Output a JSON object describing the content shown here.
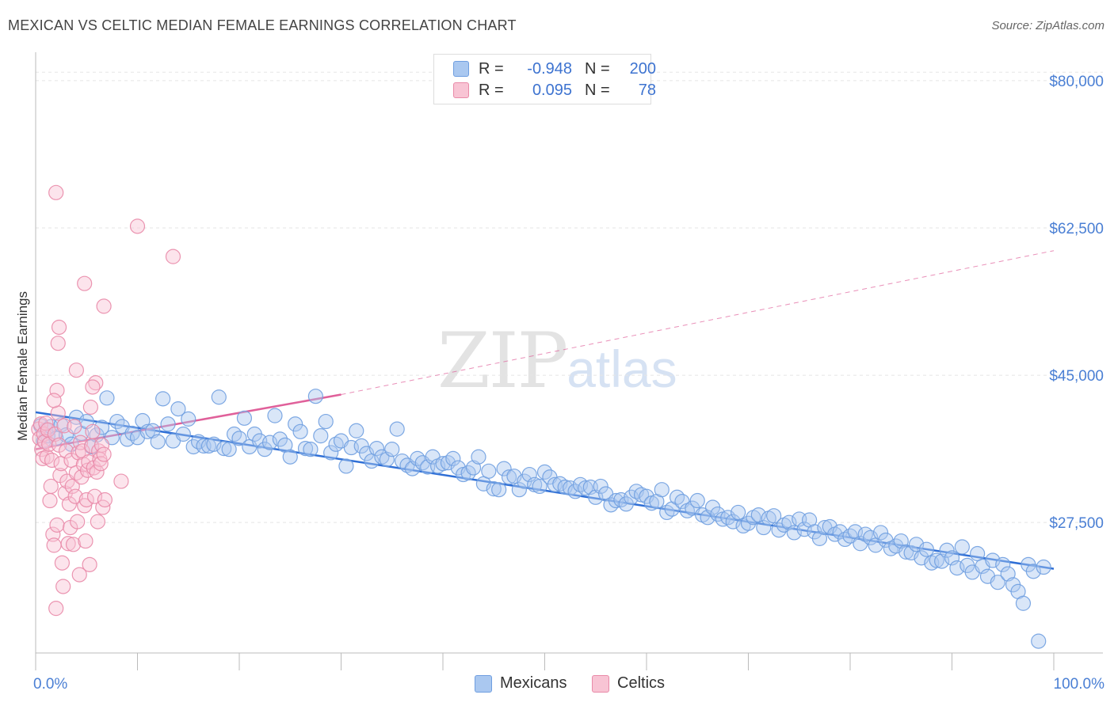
{
  "header": {
    "title": "MEXICAN VS CELTIC MEDIAN FEMALE EARNINGS CORRELATION CHART",
    "source": "Source: ZipAtlas.com"
  },
  "watermark": {
    "zip": "ZIP",
    "atlas": "atlas"
  },
  "legend": {
    "rows": [
      {
        "r_label": "R =",
        "r_value": "-0.948",
        "n_label": "N =",
        "n_value": "200",
        "color": "#aac8f0",
        "border": "#6f9ee0"
      },
      {
        "r_label": "R =",
        "r_value": "0.095",
        "n_label": "N =",
        "n_value": "78",
        "color": "#f8c4d4",
        "border": "#e98aa8"
      }
    ]
  },
  "bottom_legend": {
    "mexicans": "Mexicans",
    "celtics": "Celtics"
  },
  "colors": {
    "mexicans_fill": "#aac8f0",
    "mexicans_stroke": "#6f9ee0",
    "mexicans_line": "#2f6fd6",
    "celtics_fill": "#f8c4d4",
    "celtics_stroke": "#e98aa8",
    "celtics_line": "#e0609a",
    "grid": "#e5e5e5",
    "tick_text": "#4a7fd4"
  },
  "chart_data": {
    "type": "scatter",
    "title": "MEXICAN VS CELTIC MEDIAN FEMALE EARNINGS CORRELATION CHART",
    "xlabel": "",
    "ylabel": "Median Female Earnings",
    "xlim": [
      0,
      100
    ],
    "ylim": [
      12000,
      83000
    ],
    "x_tick_labels": [
      "0.0%",
      "100.0%"
    ],
    "y_ticks": [
      27500,
      45000,
      62500,
      80000
    ],
    "y_tick_labels": [
      "$27,500",
      "$45,000",
      "$62,500",
      "$80,000"
    ],
    "grid": "horizontal dashed",
    "legend_position": "top-center",
    "series": [
      {
        "name": "Mexicans",
        "R": -0.948,
        "N": 200,
        "trend": {
          "x": [
            0,
            100
          ],
          "y": [
            40600,
            22000
          ],
          "dashed_extension": false
        },
        "points": [
          [
            0.5,
            39.0
          ],
          [
            0.8,
            37.2
          ],
          [
            1.0,
            38.5
          ],
          [
            1.2,
            37.8
          ],
          [
            1.5,
            38.9
          ],
          [
            2.0,
            37.5
          ],
          [
            2.5,
            39.1
          ],
          [
            3.0,
            37.9
          ],
          [
            3.5,
            36.8
          ],
          [
            4.0,
            40.0
          ],
          [
            4.5,
            38.1
          ],
          [
            5.0,
            39.5
          ],
          [
            5.5,
            36.5
          ],
          [
            6.0,
            37.9
          ],
          [
            6.5,
            38.8
          ],
          [
            7.0,
            42.3
          ],
          [
            7.5,
            37.6
          ],
          [
            8.0,
            39.5
          ],
          [
            8.5,
            38.9
          ],
          [
            9.0,
            37.4
          ],
          [
            9.5,
            38.1
          ],
          [
            10.0,
            37.6
          ],
          [
            10.5,
            39.6
          ],
          [
            11.0,
            38.3
          ],
          [
            11.5,
            38.4
          ],
          [
            12.0,
            37.1
          ],
          [
            12.5,
            42.2
          ],
          [
            13.0,
            39.2
          ],
          [
            13.5,
            37.2
          ],
          [
            14.0,
            41.0
          ],
          [
            14.5,
            38.0
          ],
          [
            15.0,
            39.8
          ],
          [
            15.5,
            36.5
          ],
          [
            16.0,
            37.1
          ],
          [
            16.5,
            36.6
          ],
          [
            17.0,
            36.6
          ],
          [
            17.5,
            36.8
          ],
          [
            18.0,
            42.4
          ],
          [
            18.5,
            36.3
          ],
          [
            19.0,
            36.2
          ],
          [
            19.5,
            38.0
          ],
          [
            20.0,
            37.5
          ],
          [
            20.5,
            39.9
          ],
          [
            21.0,
            36.5
          ],
          [
            21.5,
            38.0
          ],
          [
            22.0,
            37.2
          ],
          [
            22.5,
            36.2
          ],
          [
            23.0,
            37.0
          ],
          [
            23.5,
            40.2
          ],
          [
            24.0,
            37.4
          ],
          [
            24.5,
            36.7
          ],
          [
            25.0,
            35.3
          ],
          [
            25.5,
            39.2
          ],
          [
            26.0,
            38.3
          ],
          [
            26.5,
            36.3
          ],
          [
            27.0,
            36.2
          ],
          [
            27.5,
            42.5
          ],
          [
            28.0,
            37.8
          ],
          [
            28.5,
            39.5
          ],
          [
            29.0,
            35.8
          ],
          [
            29.5,
            36.8
          ],
          [
            30.0,
            37.2
          ],
          [
            30.5,
            34.2
          ],
          [
            31.0,
            36.4
          ],
          [
            31.5,
            38.4
          ],
          [
            32.0,
            36.6
          ],
          [
            32.5,
            35.7
          ],
          [
            33.0,
            34.8
          ],
          [
            33.5,
            36.3
          ],
          [
            34.0,
            35.3
          ],
          [
            34.5,
            35.0
          ],
          [
            35.0,
            36.2
          ],
          [
            35.5,
            38.6
          ],
          [
            36.0,
            34.8
          ],
          [
            36.5,
            34.3
          ],
          [
            37.0,
            33.9
          ],
          [
            37.5,
            35.1
          ],
          [
            38.0,
            34.6
          ],
          [
            38.5,
            34.1
          ],
          [
            39.0,
            35.3
          ],
          [
            39.5,
            34.2
          ],
          [
            40.0,
            34.5
          ],
          [
            40.5,
            34.6
          ],
          [
            41.0,
            35.1
          ],
          [
            41.5,
            34.0
          ],
          [
            42.0,
            33.2
          ],
          [
            42.5,
            33.4
          ],
          [
            43.0,
            34.0
          ],
          [
            43.5,
            35.3
          ],
          [
            44.0,
            32.1
          ],
          [
            44.5,
            33.6
          ],
          [
            45.0,
            31.5
          ],
          [
            45.5,
            31.4
          ],
          [
            46.0,
            33.9
          ],
          [
            46.5,
            32.9
          ],
          [
            47.0,
            33.0
          ],
          [
            47.5,
            31.4
          ],
          [
            48.0,
            32.4
          ],
          [
            48.5,
            33.2
          ],
          [
            49.0,
            32.0
          ],
          [
            49.5,
            31.8
          ],
          [
            50.0,
            33.5
          ],
          [
            50.5,
            32.9
          ],
          [
            51.0,
            32.0
          ],
          [
            51.5,
            32.1
          ],
          [
            52.0,
            31.7
          ],
          [
            52.5,
            31.6
          ],
          [
            53.0,
            31.2
          ],
          [
            53.5,
            32.0
          ],
          [
            54.0,
            31.6
          ],
          [
            54.5,
            31.7
          ],
          [
            55.0,
            30.5
          ],
          [
            55.5,
            31.8
          ],
          [
            56.0,
            30.9
          ],
          [
            56.5,
            29.6
          ],
          [
            57.0,
            30.1
          ],
          [
            57.5,
            30.2
          ],
          [
            58.0,
            29.7
          ],
          [
            58.5,
            30.5
          ],
          [
            59.0,
            31.2
          ],
          [
            59.5,
            30.8
          ],
          [
            60.0,
            30.6
          ],
          [
            60.5,
            29.8
          ],
          [
            61.0,
            30.0
          ],
          [
            61.5,
            31.4
          ],
          [
            62.0,
            28.7
          ],
          [
            62.5,
            29.1
          ],
          [
            63.0,
            30.5
          ],
          [
            63.5,
            30.0
          ],
          [
            64.0,
            28.9
          ],
          [
            64.5,
            29.2
          ],
          [
            65.0,
            30.1
          ],
          [
            65.5,
            28.4
          ],
          [
            66.0,
            28.1
          ],
          [
            66.5,
            29.3
          ],
          [
            67.0,
            28.5
          ],
          [
            67.5,
            27.9
          ],
          [
            68.0,
            28.1
          ],
          [
            68.5,
            27.6
          ],
          [
            69.0,
            28.7
          ],
          [
            69.5,
            27.1
          ],
          [
            70.0,
            27.4
          ],
          [
            70.5,
            28.1
          ],
          [
            71.0,
            28.4
          ],
          [
            71.5,
            26.9
          ],
          [
            72.0,
            28.0
          ],
          [
            72.5,
            28.3
          ],
          [
            73.0,
            26.6
          ],
          [
            73.5,
            27.2
          ],
          [
            74.0,
            27.5
          ],
          [
            74.5,
            26.3
          ],
          [
            75.0,
            27.9
          ],
          [
            75.5,
            26.7
          ],
          [
            76.0,
            27.8
          ],
          [
            76.5,
            26.4
          ],
          [
            77.0,
            25.6
          ],
          [
            77.5,
            26.9
          ],
          [
            78.0,
            27.0
          ],
          [
            78.5,
            26.1
          ],
          [
            79.0,
            26.4
          ],
          [
            79.5,
            25.5
          ],
          [
            80.0,
            25.9
          ],
          [
            80.5,
            26.4
          ],
          [
            81.0,
            25.0
          ],
          [
            81.5,
            26.1
          ],
          [
            82.0,
            25.7
          ],
          [
            82.5,
            24.8
          ],
          [
            83.0,
            26.3
          ],
          [
            83.5,
            25.4
          ],
          [
            84.0,
            24.4
          ],
          [
            84.5,
            24.7
          ],
          [
            85.0,
            25.3
          ],
          [
            85.5,
            24.0
          ],
          [
            86.0,
            23.9
          ],
          [
            86.5,
            24.9
          ],
          [
            87.0,
            23.3
          ],
          [
            87.5,
            24.3
          ],
          [
            88.0,
            22.7
          ],
          [
            88.5,
            23.0
          ],
          [
            89.0,
            22.9
          ],
          [
            89.5,
            24.2
          ],
          [
            90.0,
            23.3
          ],
          [
            90.5,
            22.1
          ],
          [
            91.0,
            24.6
          ],
          [
            91.5,
            22.4
          ],
          [
            92.0,
            21.6
          ],
          [
            92.5,
            23.8
          ],
          [
            93.0,
            22.3
          ],
          [
            93.5,
            21.1
          ],
          [
            94.0,
            23.0
          ],
          [
            94.5,
            20.4
          ],
          [
            95.0,
            22.5
          ],
          [
            95.5,
            21.4
          ],
          [
            96.0,
            20.1
          ],
          [
            96.5,
            19.3
          ],
          [
            97.0,
            17.9
          ],
          [
            97.5,
            22.5
          ],
          [
            98.0,
            21.7
          ],
          [
            98.5,
            13.4
          ],
          [
            99.0,
            22.2
          ]
        ]
      },
      {
        "name": "Celtics",
        "R": 0.095,
        "N": 78,
        "trend": {
          "x": [
            0,
            30,
            100
          ],
          "y": [
            36200,
            42700,
            59800
          ],
          "dashed_extension": true
        },
        "points": [
          [
            0.3,
            38.6
          ],
          [
            0.4,
            37.5
          ],
          [
            0.5,
            39.2
          ],
          [
            0.6,
            36.2
          ],
          [
            0.7,
            35.1
          ],
          [
            0.8,
            38.0
          ],
          [
            0.9,
            37.1
          ],
          [
            1.0,
            39.3
          ],
          [
            1.1,
            35.3
          ],
          [
            1.2,
            38.5
          ],
          [
            1.3,
            36.8
          ],
          [
            1.4,
            30.1
          ],
          [
            1.5,
            31.8
          ],
          [
            1.6,
            34.9
          ],
          [
            1.7,
            26.1
          ],
          [
            1.8,
            24.8
          ],
          [
            1.9,
            38.0
          ],
          [
            2.0,
            17.3
          ],
          [
            2.1,
            27.2
          ],
          [
            2.2,
            40.5
          ],
          [
            2.3,
            36.7
          ],
          [
            2.4,
            33.1
          ],
          [
            2.5,
            34.5
          ],
          [
            2.6,
            22.7
          ],
          [
            2.7,
            19.9
          ],
          [
            2.8,
            39.0
          ],
          [
            2.9,
            31.0
          ],
          [
            3.0,
            36.0
          ],
          [
            3.1,
            32.4
          ],
          [
            3.2,
            25.0
          ],
          [
            3.3,
            29.7
          ],
          [
            3.4,
            26.9
          ],
          [
            3.5,
            34.9
          ],
          [
            3.6,
            31.8
          ],
          [
            3.7,
            24.9
          ],
          [
            3.8,
            38.9
          ],
          [
            3.9,
            30.6
          ],
          [
            4.0,
            33.4
          ],
          [
            4.1,
            27.6
          ],
          [
            4.2,
            35.8
          ],
          [
            4.3,
            21.3
          ],
          [
            4.4,
            37.0
          ],
          [
            4.5,
            32.9
          ],
          [
            4.6,
            36.0
          ],
          [
            4.7,
            34.4
          ],
          [
            4.8,
            29.5
          ],
          [
            4.9,
            25.3
          ],
          [
            5.0,
            30.2
          ],
          [
            5.1,
            33.7
          ],
          [
            5.2,
            34.7
          ],
          [
            5.3,
            22.5
          ],
          [
            5.4,
            41.2
          ],
          [
            5.5,
            36.6
          ],
          [
            5.6,
            38.3
          ],
          [
            5.7,
            34.0
          ],
          [
            5.8,
            30.6
          ],
          [
            5.9,
            44.1
          ],
          [
            6.0,
            33.5
          ],
          [
            6.1,
            27.6
          ],
          [
            6.2,
            36.0
          ],
          [
            6.3,
            35.0
          ],
          [
            6.4,
            34.5
          ],
          [
            6.5,
            36.7
          ],
          [
            6.6,
            29.3
          ],
          [
            6.7,
            35.6
          ],
          [
            6.8,
            30.2
          ],
          [
            2.0,
            66.7
          ],
          [
            10.0,
            62.7
          ],
          [
            13.5,
            59.1
          ],
          [
            4.8,
            55.9
          ],
          [
            6.7,
            53.2
          ],
          [
            2.3,
            50.7
          ],
          [
            2.2,
            48.8
          ],
          [
            4.0,
            45.6
          ],
          [
            5.6,
            43.6
          ],
          [
            2.1,
            43.2
          ],
          [
            1.8,
            42.0
          ],
          [
            8.4,
            32.4
          ]
        ]
      }
    ]
  }
}
